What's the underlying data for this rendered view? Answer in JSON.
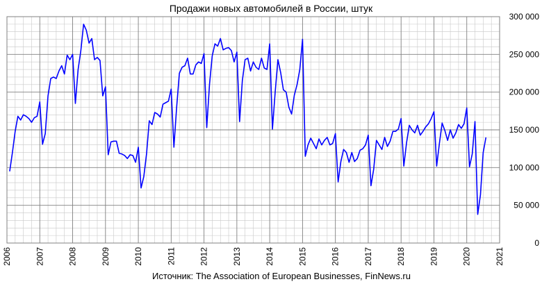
{
  "chart_data": {
    "type": "line",
    "title": "Продажи новых автомобилей в России, штук",
    "source": "Источник: The Association of European Businesses, FinNews.ru",
    "xlabel": "",
    "ylabel": "",
    "xlim": [
      2006,
      2021
    ],
    "ylim": [
      0,
      300000
    ],
    "x_ticks": [
      "2006",
      "2007",
      "2008",
      "2009",
      "2010",
      "2011",
      "2012",
      "2013",
      "2014",
      "2015",
      "2016",
      "2017",
      "2018",
      "2019",
      "2020",
      "2021"
    ],
    "y_ticks": [
      {
        "value": 0,
        "label": "0"
      },
      {
        "value": 50000,
        "label": "50 000"
      },
      {
        "value": 100000,
        "label": "100 000"
      },
      {
        "value": 150000,
        "label": "150 000"
      },
      {
        "value": 200000,
        "label": "200 000"
      },
      {
        "value": 250000,
        "label": "250 000"
      },
      {
        "value": 300000,
        "label": "300 000"
      }
    ],
    "grid": true,
    "line_color": "#0000ff",
    "series": [
      {
        "start_year": 2006,
        "step_months": 1,
        "values": [
          95000,
          120000,
          148000,
          168000,
          163000,
          170000,
          168000,
          165000,
          160000,
          166000,
          168000,
          187000,
          131000,
          145000,
          195000,
          218000,
          220000,
          218000,
          228000,
          235000,
          224000,
          249000,
          243000,
          250000,
          185000,
          230000,
          255000,
          290000,
          282000,
          265000,
          271000,
          243000,
          246000,
          242000,
          195000,
          207000,
          117000,
          134000,
          135000,
          135000,
          119000,
          118000,
          116000,
          112000,
          117000,
          116000,
          107000,
          127000,
          73000,
          88000,
          118000,
          162000,
          157000,
          173000,
          171000,
          167000,
          184000,
          186000,
          188000,
          204000,
          127000,
          180000,
          225000,
          233000,
          235000,
          245000,
          224000,
          224000,
          236000,
          240000,
          238000,
          251000,
          153000,
          210000,
          248000,
          264000,
          261000,
          271000,
          256000,
          258000,
          259000,
          255000,
          240000,
          253000,
          161000,
          215000,
          243000,
          245000,
          228000,
          240000,
          233000,
          230000,
          245000,
          232000,
          230000,
          264000,
          151000,
          200000,
          243000,
          226000,
          203000,
          200000,
          180000,
          171000,
          196000,
          210000,
          230000,
          270000,
          115000,
          130000,
          139000,
          132000,
          125000,
          138000,
          130000,
          136000,
          140000,
          130000,
          132000,
          145000,
          81000,
          108000,
          124000,
          120000,
          107000,
          120000,
          108000,
          112000,
          123000,
          125000,
          130000,
          143000,
          76000,
          98000,
          136000,
          130000,
          124000,
          140000,
          128000,
          135000,
          148000,
          148000,
          151000,
          165000,
          102000,
          133000,
          156000,
          150000,
          146000,
          156000,
          143000,
          148000,
          154000,
          158000,
          165000,
          174000,
          102000,
          132000,
          159000,
          149000,
          136000,
          150000,
          139000,
          146000,
          157000,
          152000,
          158000,
          179000,
          101000,
          118000,
          161000,
          38000,
          64000,
          120000,
          140000
        ]
      }
    ]
  }
}
